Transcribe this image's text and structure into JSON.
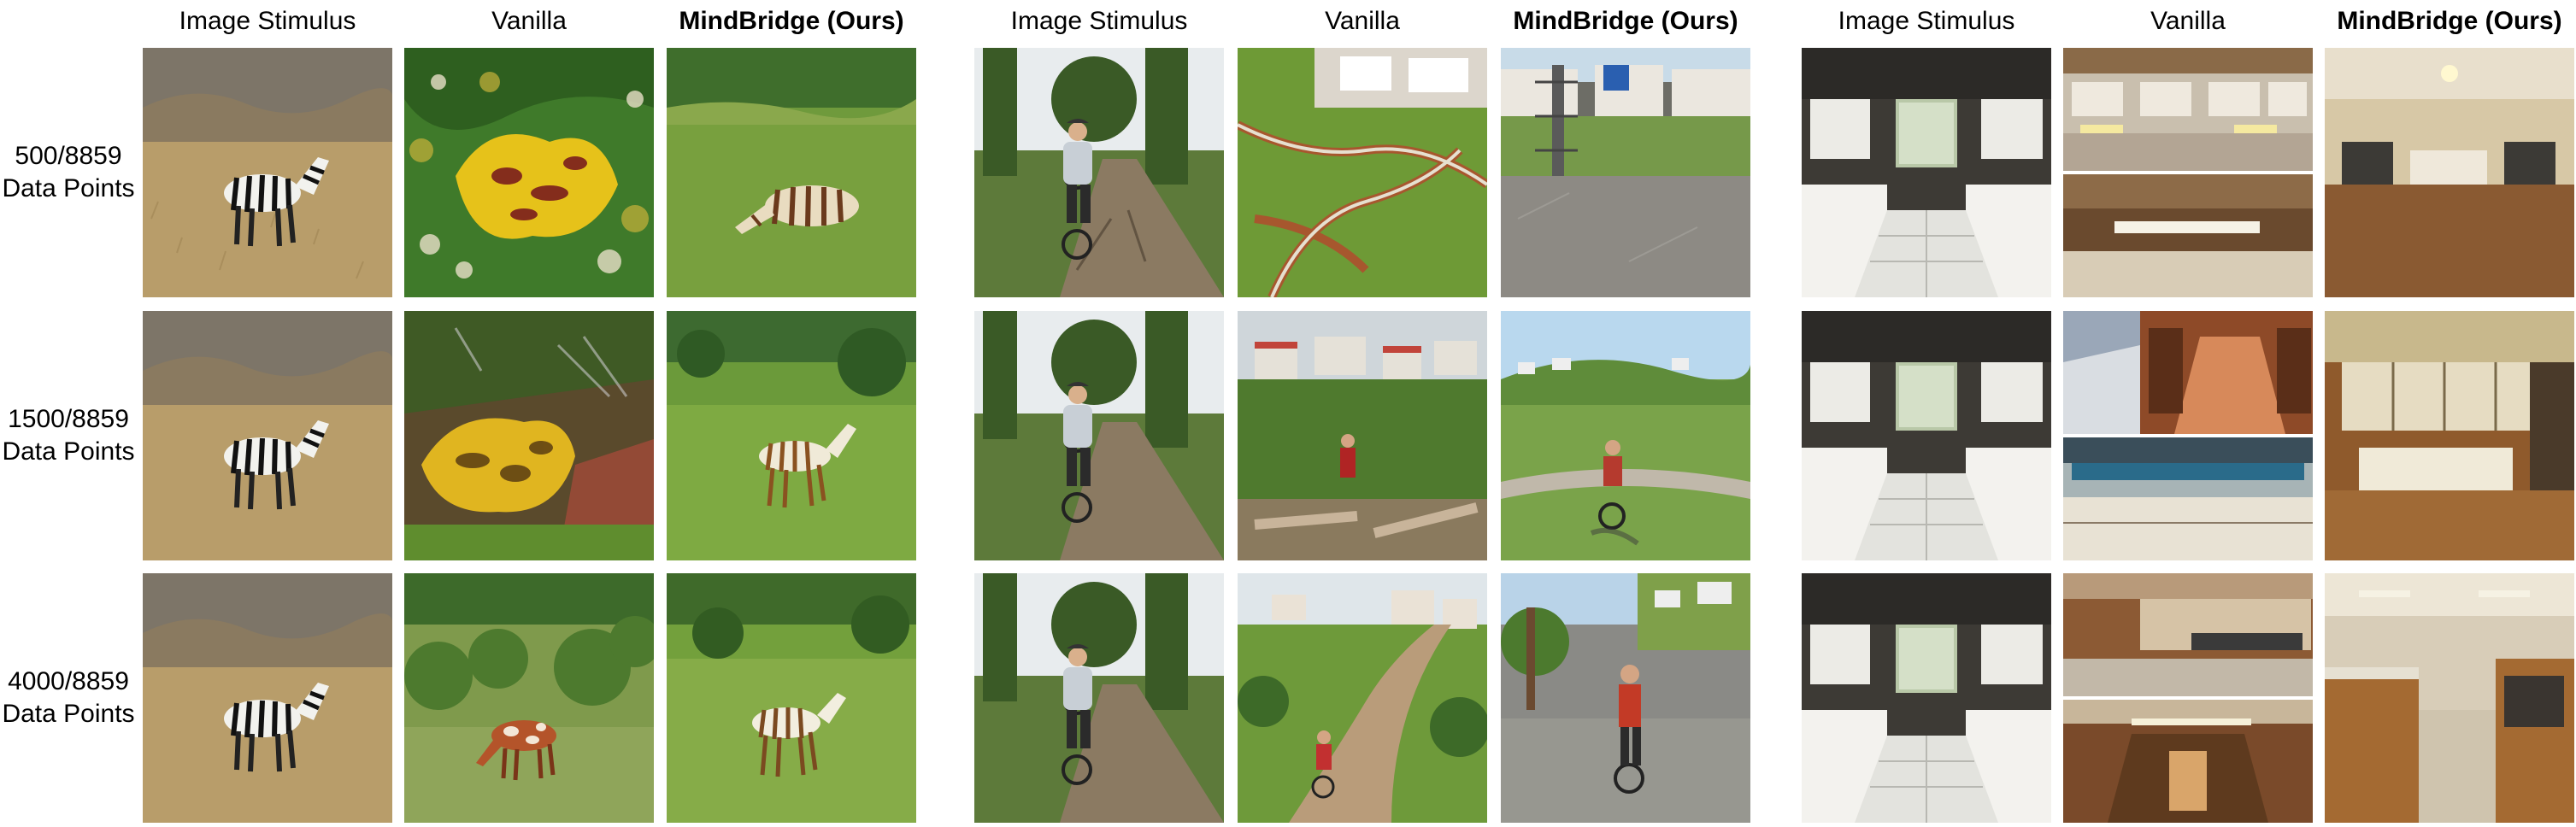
{
  "groups": [
    {
      "name": "zebra-group",
      "headers": [
        "Image Stimulus",
        "Vanilla",
        "MindBridge (Ours)"
      ]
    },
    {
      "name": "cyclist-group",
      "headers": [
        "Image Stimulus",
        "Vanilla",
        "MindBridge (Ours)"
      ]
    },
    {
      "name": "kitchen-group",
      "headers": [
        "Image Stimulus",
        "Vanilla",
        "MindBridge (Ours)"
      ]
    }
  ],
  "rows": [
    {
      "line1": "500/8859",
      "line2": "Data Points"
    },
    {
      "line1": "1500/8859",
      "line2": "Data Points"
    },
    {
      "line1": "4000/8859",
      "line2": "Data Points"
    }
  ],
  "colors": {
    "savanna": "#b69a68",
    "grass": "#6f9a3c",
    "psychedelic_yellow": "#e6c21a",
    "forest_path": "#6d5a44",
    "kitchen_cabinet": "#e9e6df",
    "kitchen_wood": "#8a5a32"
  }
}
